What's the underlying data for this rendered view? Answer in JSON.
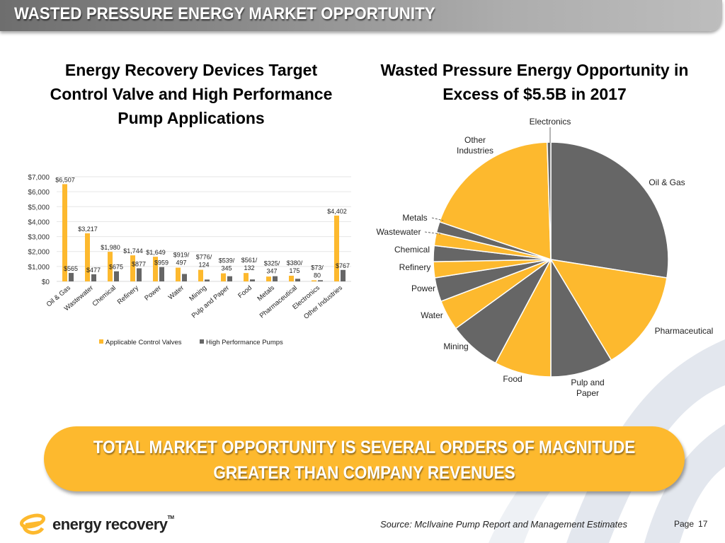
{
  "header": {
    "title": "WASTED PRESSURE ENERGY MARKET OPPORTUNITY"
  },
  "colors": {
    "yellow": "#FDB92E",
    "gray": "#666666",
    "banner": "#FDB92E"
  },
  "chart_data": [
    {
      "type": "bar",
      "title": "Energy Recovery Devices Target Control Valve and High Performance Pump Applications",
      "title_lines": [
        "Energy Recovery Devices Target",
        "Control Valve and High Performance",
        "Pump Applications"
      ],
      "categories": [
        "Oil & Gas",
        "Wastewater",
        "Chemical",
        "Refinery",
        "Power",
        "Water",
        "Mining",
        "Pulp and Paper",
        "Food",
        "Metals",
        "Pharmaceutical",
        "Electronics",
        "Other Industries"
      ],
      "series": [
        {
          "name": "Applicable Control Valves",
          "color": "#FDB92E",
          "values": [
            6507,
            3217,
            1980,
            1744,
            1649,
            919,
            776,
            539,
            561,
            325,
            380,
            73,
            4402
          ]
        },
        {
          "name": "High Performance Pumps",
          "color": "#666666",
          "values": [
            565,
            477,
            675,
            877,
            959,
            497,
            124,
            345,
            132,
            347,
            175,
            80,
            767
          ]
        }
      ],
      "data_labels": [
        {
          "valve": "$6,507",
          "pump": "$565"
        },
        {
          "valve": "$3,217",
          "pump": "$477"
        },
        {
          "valve": "$1,980",
          "pump": "$675"
        },
        {
          "valve": "$1,744",
          "pump": "$877"
        },
        {
          "valve": "$1,649",
          "pump": "$959"
        },
        {
          "combined": [
            "$919/",
            "497"
          ]
        },
        {
          "combined": [
            "$776/",
            "124"
          ]
        },
        {
          "combined": [
            "$539/",
            "345"
          ]
        },
        {
          "combined": [
            "$561/",
            "132"
          ]
        },
        {
          "combined": [
            "$325/",
            "347"
          ]
        },
        {
          "combined": [
            "$380/",
            "175"
          ]
        },
        {
          "combined": [
            "$73/",
            "80"
          ]
        },
        {
          "valve": "$4,402",
          "pump": "$767"
        }
      ],
      "yticks": [
        "$0",
        "$1,000",
        "$2,000",
        "$3,000",
        "$4,000",
        "$5,000",
        "$6,000",
        "$7,000"
      ],
      "ylim": [
        0,
        7000
      ],
      "grid": true,
      "legend": "bottom",
      "xlabel": "",
      "ylabel": ""
    },
    {
      "type": "pie",
      "title": "Wasted Pressure Energy Opportunity in Excess of $5.5B in 2017",
      "title_lines": [
        "Wasted Pressure Energy Opportunity in",
        "Excess of $5.5B in 2017"
      ],
      "slices": [
        {
          "label": "Oil & Gas",
          "percent": 27.5,
          "color": "#666666"
        },
        {
          "label": "Pharmaceutical",
          "percent": 13.9,
          "color": "#FDB92E"
        },
        {
          "label": "Pulp and Paper",
          "percent": 8.6,
          "color": "#666666"
        },
        {
          "label": "Food",
          "percent": 7.8,
          "color": "#FDB92E"
        },
        {
          "label": "Mining",
          "percent": 7.2,
          "color": "#666666"
        },
        {
          "label": "Water",
          "percent": 4.2,
          "color": "#FDB92E"
        },
        {
          "label": "Power",
          "percent": 3.3,
          "color": "#666666"
        },
        {
          "label": "Refinery",
          "percent": 2.2,
          "color": "#FDB92E"
        },
        {
          "label": "Chemical",
          "percent": 2.2,
          "color": "#666666"
        },
        {
          "label": "Wastewater",
          "percent": 1.8,
          "color": "#FDB92E"
        },
        {
          "label": "Metals",
          "percent": 1.5,
          "color": "#666666"
        },
        {
          "label": "Other Industries",
          "percent": 19.3,
          "color": "#FDB92E"
        },
        {
          "label": "Electronics",
          "percent": 0.5,
          "color": "#666666"
        }
      ],
      "legend": "none (labels outside slices)"
    }
  ],
  "banner": {
    "line1": "TOTAL MARKET OPPORTUNITY IS SEVERAL ORDERS OF MAGNITUDE",
    "line2": "GREATER THAN COMPANY REVENUES"
  },
  "footer": {
    "logo_text": "energy recovery",
    "logo_tm": "TM",
    "source": "Source: McIlvaine Pump Report and Management Estimates",
    "page_label": "Page",
    "page_number": "17"
  }
}
